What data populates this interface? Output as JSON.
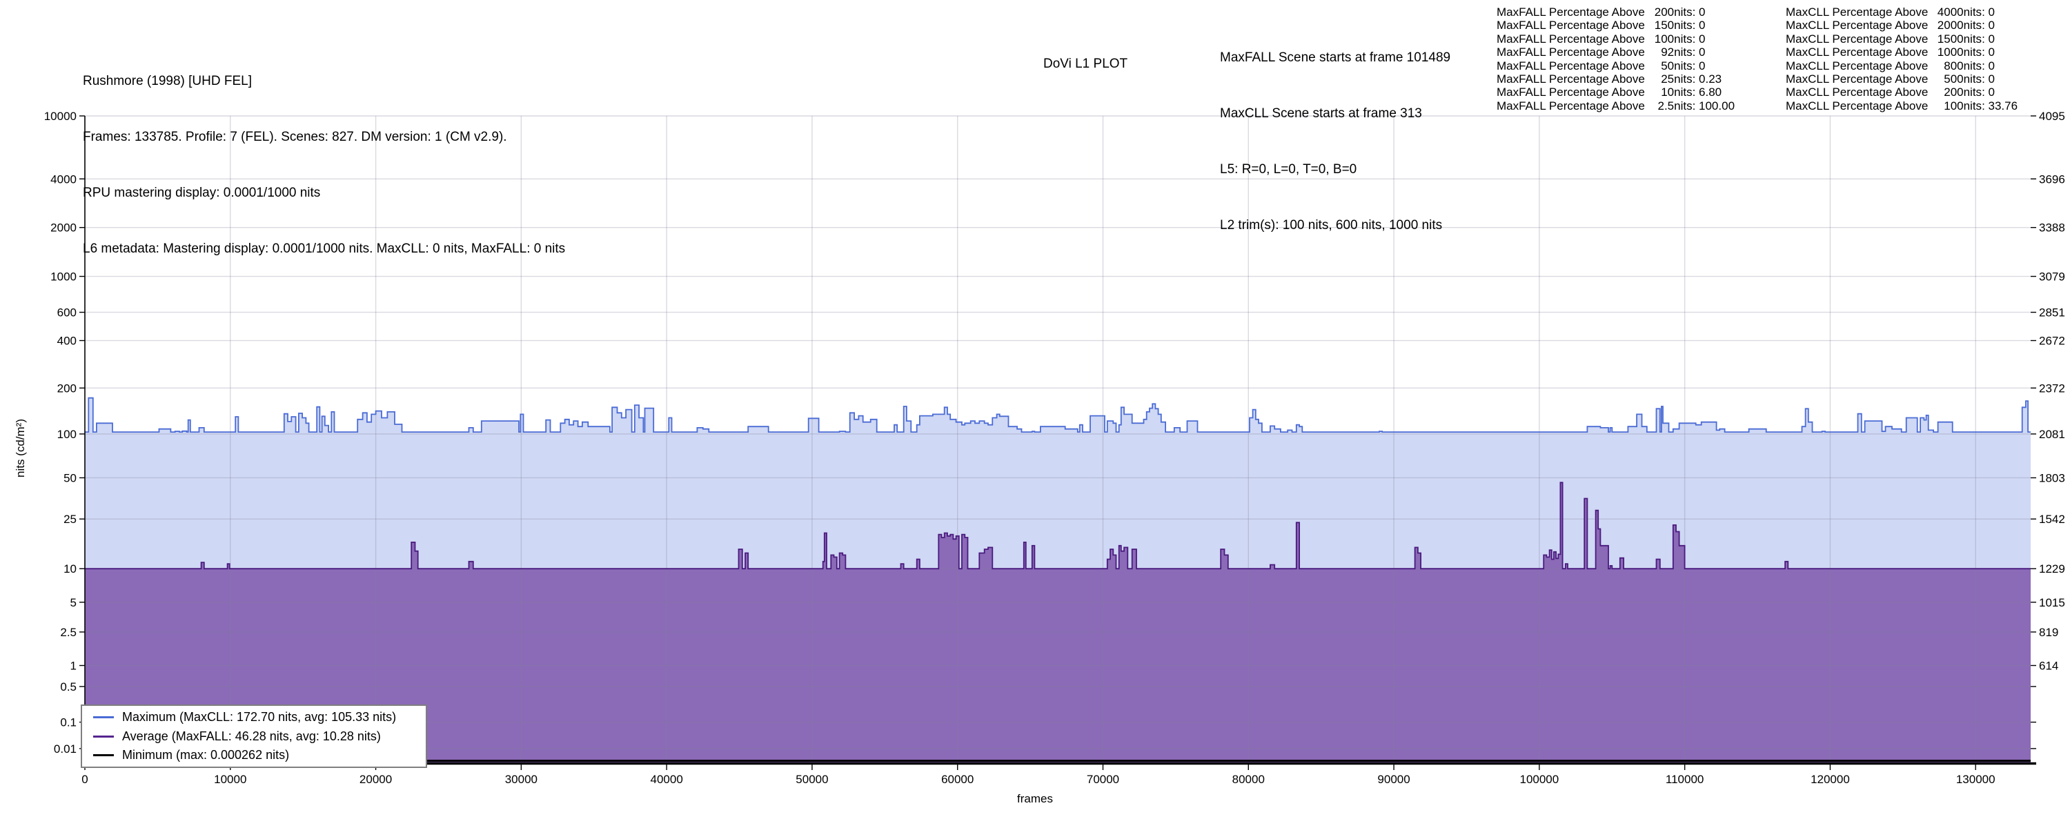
{
  "header": {
    "title": "Rushmore (1998) [UHD FEL]",
    "line2": "Frames: 133785. Profile: 7 (FEL). Scenes: 827. DM version: 1 (CM v2.9).",
    "line3": "RPU mastering display: 0.0001/1000 nits",
    "line4": "L6 metadata: Mastering display: 0.0001/1000 nits. MaxCLL: 0 nits, MaxFALL: 0 nits"
  },
  "plot_title": "DoVi L1 PLOT",
  "scene_info": {
    "line1": "MaxFALL Scene starts at frame 101489",
    "line2": "MaxCLL Scene starts at frame 313",
    "line3": "L5: R=0, L=0, T=0, B=0",
    "line4": "L2 trim(s): 100 nits, 600 nits, 1000 nits"
  },
  "tables": {
    "colon": ": ",
    "maxfall": {
      "prefix": "MaxFALL Percentage Above ",
      "rows": [
        {
          "t": "200nits",
          "v": "0"
        },
        {
          "t": "150nits",
          "v": "0"
        },
        {
          "t": "100nits",
          "v": "0"
        },
        {
          "t": "92nits",
          "v": "0"
        },
        {
          "t": "50nits",
          "v": "0"
        },
        {
          "t": "25nits",
          "v": "0.23"
        },
        {
          "t": "10nits",
          "v": "6.80"
        },
        {
          "t": "2.5nits",
          "v": "100.00"
        }
      ]
    },
    "maxcll": {
      "prefix": "MaxCLL Percentage Above ",
      "rows": [
        {
          "t": "4000nits",
          "v": "0"
        },
        {
          "t": "2000nits",
          "v": "0"
        },
        {
          "t": "1500nits",
          "v": "0"
        },
        {
          "t": "1000nits",
          "v": "0"
        },
        {
          "t": "800nits",
          "v": "0"
        },
        {
          "t": "500nits",
          "v": "0"
        },
        {
          "t": "200nits",
          "v": "0"
        },
        {
          "t": "100nits",
          "v": "33.76"
        }
      ]
    }
  },
  "legend": {
    "items": [
      {
        "label": "Maximum (MaxCLL: 172.70 nits, avg: 105.33 nits)",
        "color": "#4a6bd5"
      },
      {
        "label": "Average (MaxFALL: 46.28 nits, avg: 10.28 nits)",
        "color": "#55238f"
      },
      {
        "label": "Minimum (max: 0.000262 nits)",
        "color": "#000000"
      }
    ]
  },
  "chart_data": {
    "type": "area",
    "title": "DoVi L1 PLOT",
    "xlabel": "frames",
    "ylabel": "nits (cd/m²)",
    "x_range": [
      0,
      133785
    ],
    "x_ticks": [
      0,
      10000,
      20000,
      30000,
      40000,
      50000,
      60000,
      70000,
      80000,
      90000,
      100000,
      110000,
      120000,
      130000
    ],
    "y_scale": "PQ (SMPTE ST 2084) — linear in 12-bit code value, 0 to 4095",
    "y_ticks": [
      {
        "nits": 10000,
        "left": "10000",
        "right": "4095"
      },
      {
        "nits": 4000,
        "left": "4000",
        "right": "3696"
      },
      {
        "nits": 2000,
        "left": "2000",
        "right": "3388"
      },
      {
        "nits": 1000,
        "left": "1000",
        "right": "3079"
      },
      {
        "nits": 600,
        "left": "600",
        "right": "2851"
      },
      {
        "nits": 400,
        "left": "400",
        "right": "2672"
      },
      {
        "nits": 200,
        "left": "200",
        "right": "2372"
      },
      {
        "nits": 100,
        "left": "100",
        "right": "2081"
      },
      {
        "nits": 50,
        "left": "50",
        "right": "1803"
      },
      {
        "nits": 25,
        "left": "25",
        "right": "1542"
      },
      {
        "nits": 10,
        "left": "10",
        "right": "1229"
      },
      {
        "nits": 5,
        "left": "5",
        "right": "1015"
      },
      {
        "nits": 2.5,
        "left": "2.5",
        "right": "819"
      },
      {
        "nits": 1,
        "left": "1",
        "right": "614"
      },
      {
        "nits": 0.5,
        "left": "0.5",
        "right": ""
      },
      {
        "nits": 0.1,
        "left": "0.1",
        "right": ""
      },
      {
        "nits": 0.01,
        "left": "0.01",
        "right": ""
      }
    ],
    "series": [
      {
        "name": "Maximum",
        "maxcll": 172.7,
        "avg": 105.33,
        "line": "#4a6bd5",
        "fill": "#cfd8f4"
      },
      {
        "name": "Average",
        "maxfall": 46.28,
        "avg": 10.28,
        "line": "#4a1a7f",
        "fill": "#8b6ab7"
      },
      {
        "name": "Minimum",
        "max": 0.000262,
        "line": "#000000",
        "value": 0.0002
      }
    ],
    "grid_color": "rgba(130,130,155,0.30)",
    "segments_format": "[start_frame, max_nits, avg_nits] (step-after until next start)",
    "segments": [
      [
        0,
        103,
        10
      ],
      [
        250,
        172.7,
        10
      ],
      [
        560,
        103,
        10
      ],
      [
        800,
        118,
        10
      ],
      [
        1900,
        103,
        10
      ],
      [
        5100,
        108,
        10
      ],
      [
        5900,
        103,
        10
      ],
      [
        6200,
        104,
        10
      ],
      [
        6500,
        103,
        10
      ],
      [
        6700,
        104.5,
        10
      ],
      [
        7000,
        103,
        10
      ],
      [
        7100,
        124,
        10
      ],
      [
        7250,
        103,
        10
      ],
      [
        7850,
        110,
        10
      ],
      [
        8000,
        110,
        11.3
      ],
      [
        8200,
        103,
        10
      ],
      [
        9800,
        103,
        11
      ],
      [
        9950,
        103,
        10
      ],
      [
        10350,
        130,
        10
      ],
      [
        10550,
        103,
        10
      ],
      [
        13700,
        136,
        10
      ],
      [
        13950,
        121,
        10
      ],
      [
        14200,
        130,
        10
      ],
      [
        14500,
        103,
        10
      ],
      [
        14700,
        137,
        10
      ],
      [
        14950,
        128,
        10
      ],
      [
        15200,
        118,
        10
      ],
      [
        15400,
        103,
        10
      ],
      [
        15950,
        151,
        10
      ],
      [
        16150,
        103,
        10
      ],
      [
        16300,
        131,
        10
      ],
      [
        16500,
        114,
        10
      ],
      [
        16750,
        103,
        10
      ],
      [
        16950,
        140,
        10
      ],
      [
        17150,
        103,
        10
      ],
      [
        18750,
        125,
        10
      ],
      [
        19100,
        138,
        10
      ],
      [
        19400,
        120,
        10
      ],
      [
        19700,
        135,
        10
      ],
      [
        20000,
        142,
        10
      ],
      [
        20400,
        128,
        10
      ],
      [
        20800,
        140,
        10
      ],
      [
        21300,
        116,
        10
      ],
      [
        21800,
        103,
        10
      ],
      [
        22450,
        103,
        16.5
      ],
      [
        22700,
        103,
        14
      ],
      [
        22900,
        103,
        10
      ],
      [
        26400,
        110,
        11.5
      ],
      [
        26700,
        103,
        10
      ],
      [
        27270,
        122,
        10
      ],
      [
        29840,
        103,
        10
      ],
      [
        29950,
        135,
        10
      ],
      [
        30150,
        103,
        10
      ],
      [
        31700,
        124,
        10
      ],
      [
        32000,
        103,
        10
      ],
      [
        32700,
        118,
        10
      ],
      [
        33000,
        125,
        10
      ],
      [
        33300,
        115,
        10
      ],
      [
        33600,
        122,
        10
      ],
      [
        33900,
        112,
        10
      ],
      [
        34200,
        120,
        10
      ],
      [
        34600,
        112,
        10
      ],
      [
        36100,
        103,
        10
      ],
      [
        36250,
        150,
        10
      ],
      [
        36600,
        138,
        10
      ],
      [
        36900,
        128,
        10
      ],
      [
        37200,
        145,
        10
      ],
      [
        37600,
        103,
        10
      ],
      [
        37800,
        155,
        10
      ],
      [
        38100,
        128,
        10
      ],
      [
        38400,
        103,
        10
      ],
      [
        38500,
        148,
        10
      ],
      [
        39100,
        103,
        10
      ],
      [
        40150,
        128,
        10
      ],
      [
        40350,
        103,
        10
      ],
      [
        42100,
        110,
        10
      ],
      [
        42500,
        108,
        10
      ],
      [
        42900,
        103,
        10
      ],
      [
        44950,
        103,
        14.5
      ],
      [
        45200,
        103,
        10
      ],
      [
        45400,
        103,
        13.5
      ],
      [
        45600,
        112,
        10
      ],
      [
        47000,
        103,
        10
      ],
      [
        49750,
        127,
        10
      ],
      [
        50460,
        103,
        10
      ],
      [
        50750,
        103,
        11.5
      ],
      [
        50850,
        103,
        19.5
      ],
      [
        51000,
        103,
        10
      ],
      [
        51300,
        103,
        13
      ],
      [
        51500,
        103,
        12.5
      ],
      [
        51700,
        103,
        10
      ],
      [
        51880,
        104,
        13.5
      ],
      [
        52100,
        104,
        13
      ],
      [
        52300,
        103,
        10
      ],
      [
        52600,
        138,
        10
      ],
      [
        52900,
        125,
        10
      ],
      [
        53200,
        132,
        10
      ],
      [
        53500,
        120,
        10
      ],
      [
        54020,
        125,
        10
      ],
      [
        54450,
        103,
        10
      ],
      [
        55650,
        115,
        10
      ],
      [
        55850,
        103,
        10
      ],
      [
        56100,
        103,
        11
      ],
      [
        56300,
        152,
        10
      ],
      [
        56500,
        122,
        10
      ],
      [
        56800,
        103,
        10
      ],
      [
        57200,
        115,
        12
      ],
      [
        57400,
        132,
        10
      ],
      [
        58300,
        135,
        10
      ],
      [
        58700,
        135,
        19
      ],
      [
        58900,
        135,
        18
      ],
      [
        59100,
        150,
        19.5
      ],
      [
        59300,
        135,
        18.5
      ],
      [
        59500,
        125,
        19
      ],
      [
        59700,
        125,
        17.5
      ],
      [
        59900,
        120,
        18.5
      ],
      [
        60100,
        120,
        10
      ],
      [
        60300,
        115,
        19
      ],
      [
        60500,
        118,
        18
      ],
      [
        60700,
        118,
        10
      ],
      [
        60900,
        122,
        10
      ],
      [
        61200,
        118,
        10
      ],
      [
        61500,
        122,
        13.5
      ],
      [
        61850,
        118,
        14.5
      ],
      [
        62100,
        115,
        15
      ],
      [
        62400,
        128,
        10
      ],
      [
        62700,
        135,
        10
      ],
      [
        62900,
        131,
        10
      ],
      [
        63100,
        131,
        10
      ],
      [
        63300,
        131,
        10
      ],
      [
        63500,
        112,
        10
      ],
      [
        63850,
        112,
        10
      ],
      [
        64100,
        108,
        10
      ],
      [
        64400,
        103,
        10
      ],
      [
        64560,
        103,
        16.5
      ],
      [
        64700,
        103,
        10
      ],
      [
        65130,
        104,
        15.5
      ],
      [
        65300,
        103,
        10
      ],
      [
        65700,
        112,
        10
      ],
      [
        67400,
        108,
        10
      ],
      [
        68260,
        103,
        10
      ],
      [
        68400,
        115,
        10
      ],
      [
        68600,
        103,
        10
      ],
      [
        69120,
        132,
        10
      ],
      [
        70120,
        103,
        10
      ],
      [
        70300,
        122,
        12
      ],
      [
        70500,
        122,
        14.5
      ],
      [
        70700,
        118,
        13
      ],
      [
        70900,
        103,
        10
      ],
      [
        71100,
        115,
        15.5
      ],
      [
        71250,
        150,
        14
      ],
      [
        71450,
        135,
        15
      ],
      [
        71700,
        135,
        10
      ],
      [
        72000,
        118,
        14.5
      ],
      [
        72300,
        118,
        10
      ],
      [
        72800,
        125,
        10
      ],
      [
        73000,
        140,
        10
      ],
      [
        73200,
        148,
        10
      ],
      [
        73400,
        158,
        10
      ],
      [
        73600,
        147,
        10
      ],
      [
        73800,
        135,
        10
      ],
      [
        74000,
        120,
        10
      ],
      [
        74300,
        103,
        10
      ],
      [
        74900,
        110,
        10
      ],
      [
        75300,
        103,
        10
      ],
      [
        75790,
        122,
        10
      ],
      [
        76500,
        103,
        10
      ],
      [
        78100,
        103,
        14.5
      ],
      [
        78350,
        103,
        13
      ],
      [
        78600,
        103,
        10
      ],
      [
        80080,
        128,
        10
      ],
      [
        80300,
        145,
        10
      ],
      [
        80500,
        125,
        10
      ],
      [
        80700,
        118,
        10
      ],
      [
        80930,
        103,
        10
      ],
      [
        81500,
        113,
        10.8
      ],
      [
        81800,
        108,
        10
      ],
      [
        82210,
        103,
        10
      ],
      [
        82700,
        106,
        10
      ],
      [
        83000,
        103,
        10
      ],
      [
        83300,
        115,
        23.5
      ],
      [
        83500,
        112,
        10
      ],
      [
        83700,
        103,
        10
      ],
      [
        89000,
        104,
        10
      ],
      [
        89200,
        103,
        10
      ],
      [
        91450,
        103,
        15
      ],
      [
        91650,
        103,
        13.5
      ],
      [
        91850,
        103,
        10
      ],
      [
        100300,
        103,
        13
      ],
      [
        100500,
        103,
        12.5
      ],
      [
        100700,
        103,
        14.3
      ],
      [
        100850,
        103,
        12
      ],
      [
        101000,
        103,
        13.8
      ],
      [
        101150,
        103,
        12.2
      ],
      [
        101300,
        103,
        13.2
      ],
      [
        101450,
        103,
        46.28
      ],
      [
        101600,
        103,
        10
      ],
      [
        101800,
        103,
        11
      ],
      [
        101950,
        103,
        10
      ],
      [
        103100,
        103,
        35.5
      ],
      [
        103300,
        112,
        10
      ],
      [
        103880,
        112,
        29
      ],
      [
        104050,
        112,
        21
      ],
      [
        104200,
        110,
        15.5
      ],
      [
        104750,
        103,
        10
      ],
      [
        104870,
        110,
        10.6
      ],
      [
        105000,
        103,
        10
      ],
      [
        105550,
        103,
        12.3
      ],
      [
        105800,
        103,
        10
      ],
      [
        106100,
        112,
        10
      ],
      [
        106700,
        135,
        10
      ],
      [
        107050,
        112,
        10
      ],
      [
        107400,
        103,
        10
      ],
      [
        108050,
        147,
        12
      ],
      [
        108300,
        103,
        10
      ],
      [
        108400,
        152,
        10
      ],
      [
        108500,
        118,
        10
      ],
      [
        108900,
        103,
        10
      ],
      [
        109200,
        108,
        22.5
      ],
      [
        109400,
        108,
        20
      ],
      [
        109620,
        118,
        15.5
      ],
      [
        110000,
        118,
        10
      ],
      [
        110760,
        115,
        10
      ],
      [
        111140,
        120,
        10
      ],
      [
        112180,
        106,
        10
      ],
      [
        112400,
        108,
        10
      ],
      [
        112750,
        103,
        10
      ],
      [
        114410,
        108,
        10
      ],
      [
        115600,
        103,
        10
      ],
      [
        116900,
        103,
        11.5
      ],
      [
        117100,
        103,
        10
      ],
      [
        118060,
        112,
        10
      ],
      [
        118300,
        147,
        10
      ],
      [
        118500,
        120,
        10
      ],
      [
        118770,
        103,
        10
      ],
      [
        119440,
        104,
        10
      ],
      [
        119650,
        103,
        10
      ],
      [
        121900,
        136,
        10
      ],
      [
        122150,
        103,
        10
      ],
      [
        122380,
        122,
        10
      ],
      [
        123560,
        104,
        10
      ],
      [
        123800,
        112,
        10
      ],
      [
        124250,
        108,
        10
      ],
      [
        124900,
        103,
        10
      ],
      [
        125230,
        128,
        10
      ],
      [
        125990,
        103,
        10
      ],
      [
        126200,
        128,
        10
      ],
      [
        126450,
        124,
        10
      ],
      [
        126600,
        133,
        10
      ],
      [
        126750,
        106,
        10
      ],
      [
        127100,
        103,
        10
      ],
      [
        127410,
        120,
        10
      ],
      [
        128410,
        103,
        10
      ],
      [
        133200,
        150,
        10
      ],
      [
        133450,
        165,
        10
      ],
      [
        133600,
        103,
        10
      ]
    ]
  }
}
